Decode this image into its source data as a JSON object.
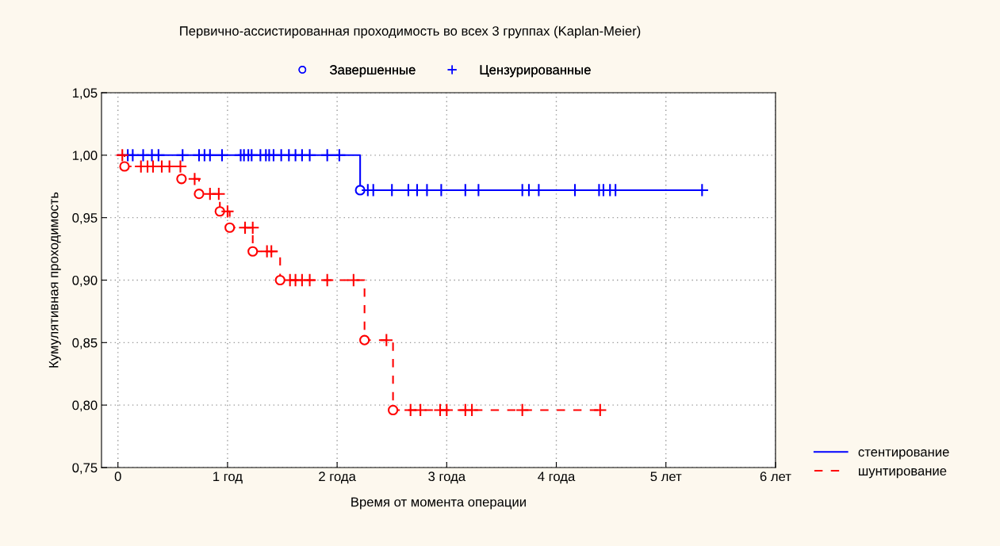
{
  "chart_data": {
    "type": "step",
    "title": "Первично-ассистированная проходимость во всех 3 группах (Kaplan-Meier)",
    "xlabel": "Время от момента операции",
    "ylabel": "Кумулятивная проходимость",
    "xlim": [
      -0.15,
      6
    ],
    "xticks": [
      {
        "value": 0,
        "label": "0"
      },
      {
        "value": 1,
        "label": "1 год"
      },
      {
        "value": 2,
        "label": "2 года"
      },
      {
        "value": 3,
        "label": "3 года"
      },
      {
        "value": 4,
        "label": "4 года"
      },
      {
        "value": 5,
        "label": "5 лет"
      },
      {
        "value": 6,
        "label": "6 лет"
      }
    ],
    "ylim": [
      0.75,
      1.05
    ],
    "yticks": [
      {
        "value": 0.75,
        "label": "0,75"
      },
      {
        "value": 0.8,
        "label": "0,80"
      },
      {
        "value": 0.85,
        "label": "0,85"
      },
      {
        "value": 0.9,
        "label": "0,90"
      },
      {
        "value": 0.95,
        "label": "0,95"
      },
      {
        "value": 1.0,
        "label": "1,00"
      },
      {
        "value": 1.05,
        "label": "1,05"
      }
    ],
    "grid": true,
    "legend": "top",
    "series": [
      {
        "name": "стентирование",
        "color": "#0000ff",
        "line_style": "solid",
        "marker": "none",
        "x": [
          0,
          2.21,
          5.33
        ],
        "values": [
          1.0,
          0.972,
          0.972
        ]
      },
      {
        "name": "шунтирование",
        "color": "#ff0000",
        "line_style": "dashed",
        "marker": "none",
        "x": [
          0,
          0.06,
          0.58,
          0.74,
          0.93,
          1.02,
          1.23,
          1.48,
          2.25,
          2.51,
          4.4
        ],
        "values": [
          1.0,
          0.991,
          0.981,
          0.969,
          0.955,
          0.942,
          0.923,
          0.9,
          0.852,
          0.796,
          0.796
        ]
      },
      {
        "name": "Завершенные",
        "type": "scatter",
        "color": "#0000ff",
        "marker": "circle",
        "x": [
          2.21,
          0.06,
          0.58,
          0.74,
          0.93,
          1.02,
          1.23,
          1.48,
          2.25,
          2.51
        ],
        "values": [
          0.972,
          0.991,
          0.981,
          0.969,
          0.955,
          0.942,
          0.923,
          0.9,
          0.852,
          0.796
        ],
        "colors": [
          "#0000ff",
          "#ff0000",
          "#ff0000",
          "#ff0000",
          "#ff0000",
          "#ff0000",
          "#ff0000",
          "#ff0000",
          "#ff0000",
          "#ff0000"
        ]
      },
      {
        "name": "Цензурированные",
        "type": "scatter",
        "color": "#0000ff",
        "marker": "cross",
        "x": [
          0.09,
          0.135,
          0.23,
          0.31,
          0.37,
          0.59,
          0.74,
          0.79,
          0.84,
          0.95,
          1.12,
          1.15,
          1.19,
          1.22,
          1.3,
          1.35,
          1.38,
          1.42,
          1.49,
          1.56,
          1.62,
          1.68,
          1.75,
          1.91,
          2.02,
          2.28,
          2.33,
          2.5,
          2.65,
          2.73,
          2.82,
          2.95,
          3.17,
          3.29,
          3.69,
          3.75,
          3.84,
          4.17,
          4.39,
          4.43,
          4.49,
          4.54,
          5.33,
          0.04,
          0.21,
          0.27,
          0.32,
          0.4,
          0.47,
          0.57,
          0.7,
          0.84,
          0.92,
          1.0,
          1.16,
          1.23,
          1.36,
          1.4,
          1.57,
          1.62,
          1.68,
          1.75,
          1.91,
          2.15,
          2.45,
          2.67,
          2.76,
          2.94,
          3.0,
          3.17,
          3.23,
          3.69,
          4.4
        ],
        "values": [
          1.0,
          1.0,
          1.0,
          1.0,
          1.0,
          1.0,
          1.0,
          1.0,
          1.0,
          1.0,
          1.0,
          1.0,
          1.0,
          1.0,
          1.0,
          1.0,
          1.0,
          1.0,
          1.0,
          1.0,
          1.0,
          1.0,
          1.0,
          1.0,
          1.0,
          0.972,
          0.972,
          0.972,
          0.972,
          0.972,
          0.972,
          0.972,
          0.972,
          0.972,
          0.972,
          0.972,
          0.972,
          0.972,
          0.972,
          0.972,
          0.972,
          0.972,
          0.972,
          1.0,
          0.991,
          0.991,
          0.991,
          0.991,
          0.991,
          0.991,
          0.981,
          0.969,
          0.969,
          0.955,
          0.942,
          0.942,
          0.923,
          0.923,
          0.9,
          0.9,
          0.9,
          0.9,
          0.9,
          0.9,
          0.852,
          0.796,
          0.796,
          0.796,
          0.796,
          0.796,
          0.796,
          0.796,
          0.796
        ],
        "colors": [
          "#0000ff",
          "#0000ff",
          "#0000ff",
          "#0000ff",
          "#0000ff",
          "#0000ff",
          "#0000ff",
          "#0000ff",
          "#0000ff",
          "#0000ff",
          "#0000ff",
          "#0000ff",
          "#0000ff",
          "#0000ff",
          "#0000ff",
          "#0000ff",
          "#0000ff",
          "#0000ff",
          "#0000ff",
          "#0000ff",
          "#0000ff",
          "#0000ff",
          "#0000ff",
          "#0000ff",
          "#0000ff",
          "#0000ff",
          "#0000ff",
          "#0000ff",
          "#0000ff",
          "#0000ff",
          "#0000ff",
          "#0000ff",
          "#0000ff",
          "#0000ff",
          "#0000ff",
          "#0000ff",
          "#0000ff",
          "#0000ff",
          "#0000ff",
          "#0000ff",
          "#0000ff",
          "#0000ff",
          "#0000ff",
          "#ff0000",
          "#ff0000",
          "#ff0000",
          "#ff0000",
          "#ff0000",
          "#ff0000",
          "#ff0000",
          "#ff0000",
          "#ff0000",
          "#ff0000",
          "#ff0000",
          "#ff0000",
          "#ff0000",
          "#ff0000",
          "#ff0000",
          "#ff0000",
          "#ff0000",
          "#ff0000",
          "#ff0000",
          "#ff0000",
          "#ff0000",
          "#ff0000",
          "#ff0000",
          "#ff0000",
          "#ff0000",
          "#ff0000",
          "#ff0000",
          "#ff0000",
          "#ff0000",
          "#ff0000"
        ]
      }
    ]
  }
}
